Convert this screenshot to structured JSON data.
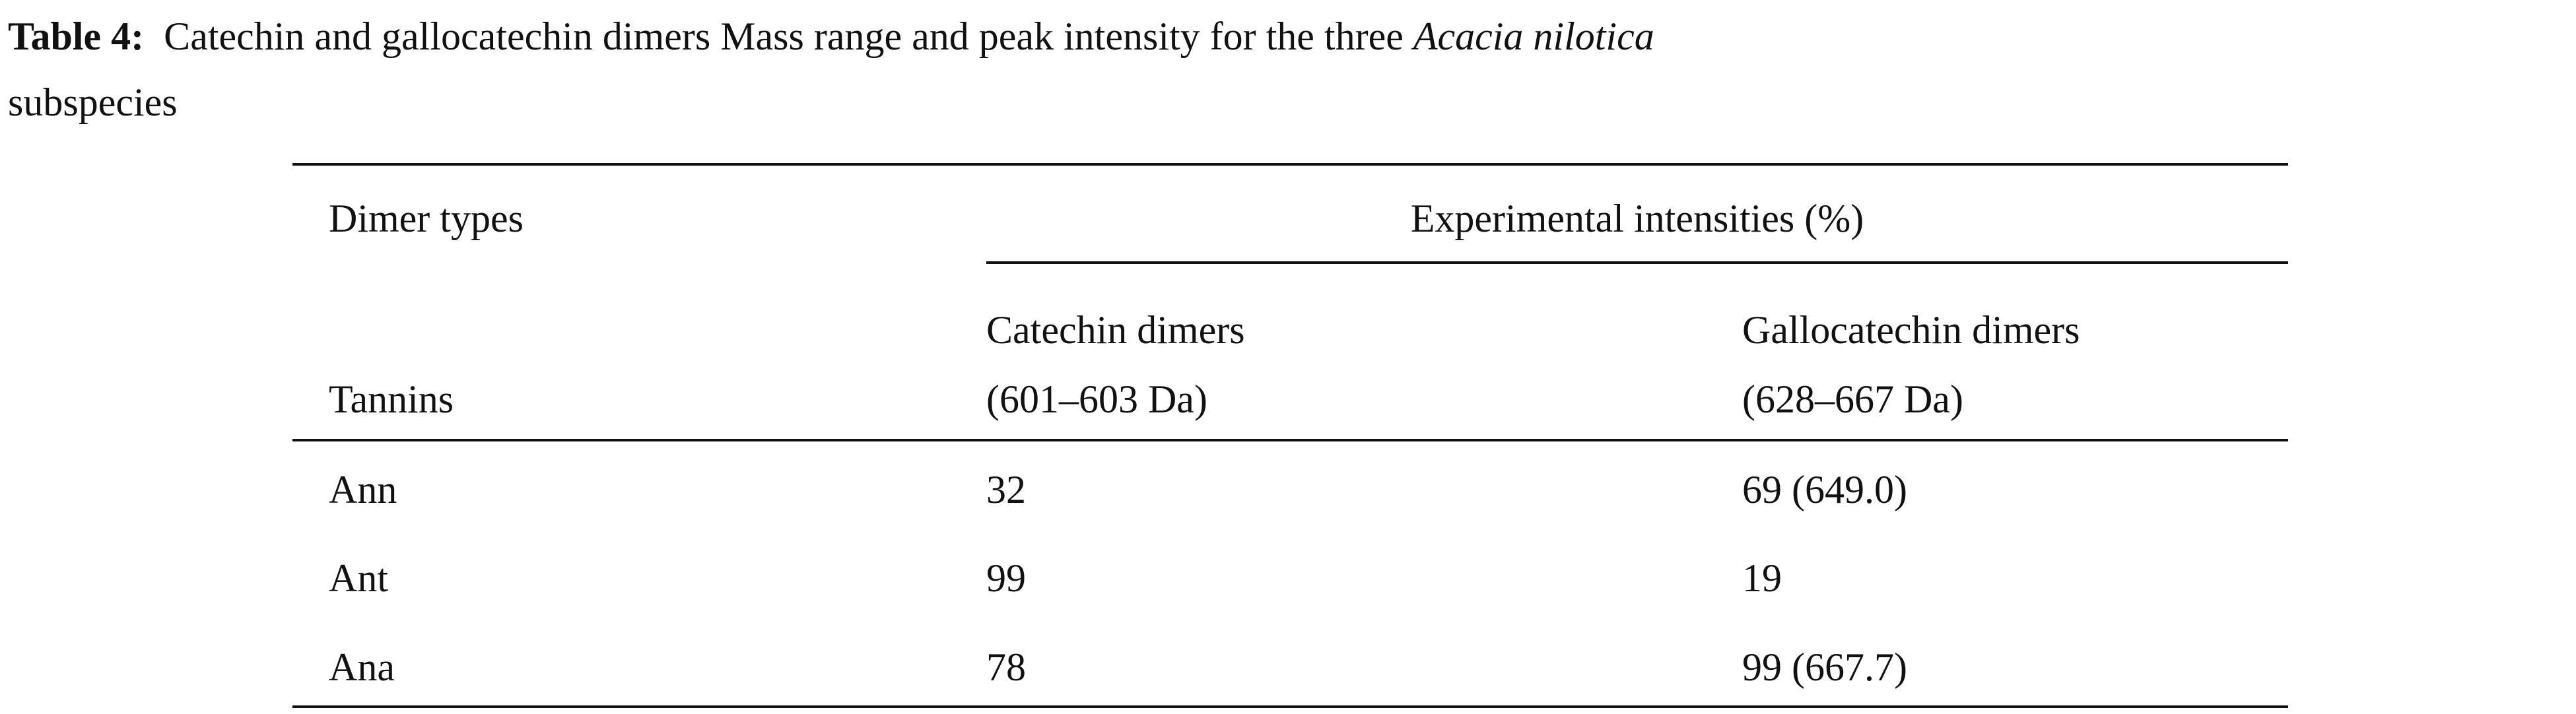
{
  "caption": {
    "label": "Table 4:",
    "text": "Catechin and gallocatechin dimers Mass range and peak intensity for the three",
    "italic": "Acacia nilotica",
    "text_end": "subspecies"
  },
  "table": {
    "header": {
      "row_label": "Dimer types",
      "group": "Experimental intensities (%)",
      "column_label": "Tannins",
      "columns": [
        [
          "Catechin dimers",
          "(601–603 Da)"
        ],
        [
          "Gallocatechin dimers",
          "(628–667 Da)"
        ]
      ]
    },
    "rows": [
      [
        "Ann",
        "32",
        "69 (649.0)"
      ],
      [
        "Ant",
        "99",
        "19"
      ],
      [
        "Ana",
        "78",
        "99 (667.7)"
      ]
    ]
  }
}
